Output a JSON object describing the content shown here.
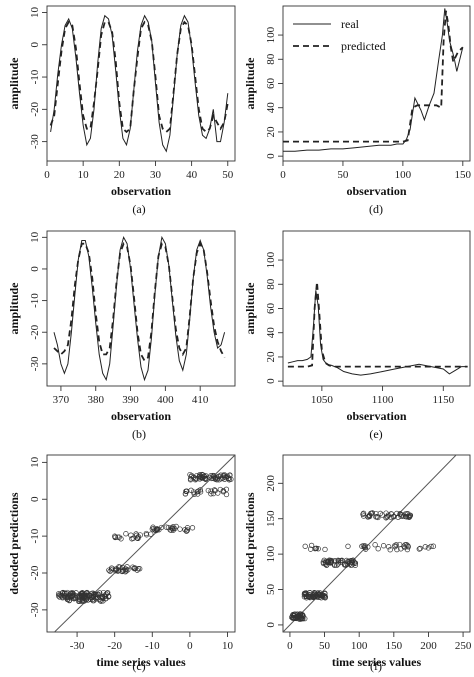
{
  "figure": {
    "legend": {
      "real_label": "real",
      "predicted_label": "predicted"
    }
  },
  "chart_data": [
    {
      "id": "a",
      "type": "line",
      "caption": "(a)",
      "xlabel": "observation",
      "ylabel": "amplitude",
      "xlim": [
        0,
        52
      ],
      "ylim": [
        -36,
        12
      ],
      "xticks": [
        0,
        10,
        20,
        30,
        40,
        50
      ],
      "yticks": [
        -30,
        -20,
        -10,
        0,
        10
      ],
      "series": [
        {
          "name": "real",
          "style": "solid",
          "x": [
            1,
            2,
            3,
            4,
            5,
            6,
            7,
            8,
            9,
            10,
            11,
            12,
            13,
            14,
            15,
            16,
            17,
            18,
            19,
            20,
            21,
            22,
            23,
            24,
            25,
            26,
            27,
            28,
            29,
            30,
            31,
            32,
            33,
            34,
            35,
            36,
            37,
            38,
            39,
            40,
            41,
            42,
            43,
            44,
            45,
            46,
            47,
            48,
            49,
            50
          ],
          "y": [
            -27,
            -20,
            -9,
            0,
            6,
            8,
            5,
            -4,
            -15,
            -25,
            -31,
            -29,
            -20,
            -6,
            5,
            9,
            8,
            3,
            -8,
            -20,
            -29,
            -31,
            -26,
            -14,
            -2,
            6,
            9,
            7,
            1,
            -12,
            -24,
            -31,
            -33,
            -28,
            -16,
            -3,
            6,
            9,
            7,
            -1,
            -12,
            -22,
            -28,
            -29,
            -26,
            -20,
            -30,
            -30,
            -24,
            -15
          ]
        },
        {
          "name": "predicted",
          "style": "dashed",
          "x": [
            1,
            2,
            3,
            4,
            5,
            6,
            7,
            8,
            9,
            10,
            11,
            12,
            13,
            14,
            15,
            16,
            17,
            18,
            19,
            20,
            21,
            22,
            23,
            24,
            25,
            26,
            27,
            28,
            29,
            30,
            31,
            32,
            33,
            34,
            35,
            36,
            37,
            38,
            39,
            40,
            41,
            42,
            43,
            44,
            45,
            46,
            47,
            48,
            49,
            50
          ],
          "y": [
            -25,
            -22,
            -12,
            -2,
            5,
            7,
            6,
            -1,
            -12,
            -22,
            -26,
            -26,
            -18,
            -8,
            3,
            7,
            7,
            4,
            -5,
            -18,
            -26,
            -27,
            -26,
            -14,
            -4,
            5,
            7,
            6,
            1,
            -10,
            -22,
            -26,
            -27,
            -26,
            -15,
            -3,
            5,
            7,
            6,
            0,
            -10,
            -20,
            -26,
            -27,
            -26,
            -22,
            -24,
            -26,
            -24,
            -18
          ]
        }
      ]
    },
    {
      "id": "d",
      "type": "line",
      "caption": "(d)",
      "xlabel": "observation",
      "ylabel": "amplitude",
      "xlim": [
        0,
        156
      ],
      "ylim": [
        -4,
        124
      ],
      "xticks": [
        0,
        50,
        100,
        150
      ],
      "yticks": [
        0,
        20,
        40,
        60,
        80,
        100
      ],
      "legend": "top-left",
      "series": [
        {
          "name": "real",
          "style": "solid",
          "x": [
            0,
            10,
            20,
            30,
            40,
            50,
            60,
            70,
            80,
            90,
            95,
            100,
            103,
            106,
            110,
            115,
            118,
            122,
            126,
            130,
            133,
            135,
            137,
            139,
            141,
            143,
            145,
            147,
            150
          ],
          "y": [
            4,
            4,
            5,
            5,
            6,
            6,
            7,
            8,
            9,
            9,
            10,
            10,
            14,
            22,
            48,
            38,
            30,
            42,
            52,
            80,
            100,
            122,
            110,
            95,
            88,
            80,
            70,
            78,
            90
          ]
        },
        {
          "name": "predicted",
          "style": "dashed",
          "x": [
            0,
            20,
            40,
            60,
            80,
            100,
            104,
            108,
            112,
            118,
            124,
            128,
            132,
            134,
            136,
            138,
            140,
            142,
            144,
            146,
            148,
            150
          ],
          "y": [
            12,
            12,
            12,
            12,
            12,
            12,
            13,
            40,
            42,
            42,
            42,
            42,
            40,
            95,
            120,
            108,
            90,
            78,
            82,
            86,
            88,
            90
          ]
        }
      ]
    },
    {
      "id": "b",
      "type": "line",
      "caption": "(b)",
      "xlabel": "observation",
      "ylabel": "amplitude",
      "xlim": [
        366,
        420
      ],
      "ylim": [
        -37,
        12
      ],
      "xticks": [
        370,
        380,
        390,
        400,
        410
      ],
      "yticks": [
        -30,
        -20,
        -10,
        0,
        10
      ],
      "series": [
        {
          "name": "real",
          "style": "solid",
          "x": [
            368,
            369,
            370,
            371,
            372,
            373,
            374,
            375,
            376,
            377,
            378,
            379,
            380,
            381,
            382,
            383,
            384,
            385,
            386,
            387,
            388,
            389,
            390,
            391,
            392,
            393,
            394,
            395,
            396,
            397,
            398,
            399,
            400,
            401,
            402,
            403,
            404,
            405,
            406,
            407,
            408,
            409,
            410,
            411,
            412,
            413,
            414,
            415,
            416,
            417
          ],
          "y": [
            -20,
            -24,
            -30,
            -33,
            -30,
            -20,
            -8,
            3,
            9,
            9,
            4,
            -6,
            -17,
            -27,
            -33,
            -35,
            -30,
            -18,
            -5,
            6,
            10,
            8,
            0,
            -11,
            -22,
            -31,
            -35,
            -32,
            -22,
            -8,
            4,
            10,
            8,
            1,
            -10,
            -21,
            -29,
            -32,
            -27,
            -16,
            -3,
            6,
            9,
            6,
            -2,
            -12,
            -20,
            -25,
            -24,
            -20
          ]
        },
        {
          "name": "predicted",
          "style": "dashed",
          "x": [
            368,
            369,
            370,
            371,
            372,
            373,
            374,
            375,
            376,
            377,
            378,
            379,
            380,
            381,
            382,
            383,
            384,
            385,
            386,
            387,
            388,
            389,
            390,
            391,
            392,
            393,
            394,
            395,
            396,
            397,
            398,
            399,
            400,
            401,
            402,
            403,
            404,
            405,
            406,
            407,
            408,
            409,
            410,
            411,
            412,
            413,
            414,
            415,
            416,
            417
          ],
          "y": [
            -25,
            -26,
            -27,
            -26,
            -24,
            -16,
            -5,
            3,
            8,
            8,
            5,
            -3,
            -14,
            -23,
            -27,
            -27,
            -25,
            -16,
            -4,
            5,
            8,
            7,
            1,
            -9,
            -20,
            -27,
            -29,
            -28,
            -20,
            -7,
            4,
            8,
            7,
            1,
            -9,
            -19,
            -25,
            -27,
            -25,
            -15,
            -3,
            5,
            8,
            6,
            -1,
            -10,
            -18,
            -23,
            -26,
            -28
          ]
        }
      ]
    },
    {
      "id": "e",
      "type": "line",
      "caption": "(e)",
      "xlabel": "observation",
      "ylabel": "amplitude",
      "xlim": [
        1018,
        1172
      ],
      "ylim": [
        -4,
        124
      ],
      "xticks": [
        1050,
        1100,
        1150
      ],
      "yticks": [
        0,
        20,
        40,
        60,
        80,
        100
      ],
      "series": [
        {
          "name": "real",
          "style": "solid",
          "x": [
            1022,
            1026,
            1030,
            1034,
            1038,
            1041,
            1043,
            1045,
            1047,
            1049,
            1051,
            1054,
            1058,
            1063,
            1068,
            1075,
            1082,
            1090,
            1100,
            1110,
            1120,
            1130,
            1140,
            1150,
            1155,
            1160,
            1165,
            1170
          ],
          "y": [
            15,
            16,
            17,
            17,
            18,
            20,
            45,
            75,
            62,
            30,
            18,
            14,
            13,
            11,
            8,
            6,
            5,
            6,
            8,
            10,
            12,
            14,
            12,
            10,
            6,
            9,
            12,
            12
          ]
        },
        {
          "name": "predicted",
          "style": "dashed",
          "x": [
            1022,
            1030,
            1038,
            1042,
            1044,
            1046,
            1048,
            1050,
            1053,
            1056,
            1060,
            1070,
            1080,
            1100,
            1120,
            1140,
            1160,
            1170
          ],
          "y": [
            12,
            12,
            12,
            13,
            60,
            82,
            55,
            25,
            15,
            13,
            12,
            12,
            12,
            12,
            12,
            12,
            12,
            12
          ]
        }
      ]
    },
    {
      "id": "c",
      "type": "scatter",
      "caption": "(c)",
      "xlabel": "time series values",
      "ylabel": "decoded predictions",
      "xlim": [
        -38,
        12
      ],
      "ylim": [
        -36,
        12
      ],
      "xticks": [
        -30,
        -20,
        -10,
        0,
        10
      ],
      "yticks": [
        -30,
        -20,
        -10,
        0,
        10
      ],
      "reference_line": "y = x",
      "point_groups": [
        {
          "x_from": -35,
          "x_to": -21,
          "y": -26,
          "count": 90
        },
        {
          "x_from": -33,
          "x_to": -22,
          "y": -27,
          "count": 40
        },
        {
          "x_from": -22,
          "x_to": -13,
          "y": -19,
          "count": 30
        },
        {
          "x_from": -20,
          "x_to": -10,
          "y": -10,
          "count": 20
        },
        {
          "x_from": -10,
          "x_to": 2,
          "y": -8,
          "count": 30
        },
        {
          "x_from": 0,
          "x_to": 11,
          "y": 6,
          "count": 60
        },
        {
          "x_from": -2,
          "x_to": 10,
          "y": 2,
          "count": 25
        }
      ]
    },
    {
      "id": "f",
      "type": "scatter",
      "caption": "(f)",
      "xlabel": "time series values",
      "ylabel": "decoded predictions",
      "xlim": [
        -10,
        260
      ],
      "ylim": [
        -10,
        240
      ],
      "xticks": [
        0,
        50,
        100,
        150,
        200,
        250
      ],
      "yticks": [
        0,
        50,
        100,
        150,
        200
      ],
      "reference_line": "y = x",
      "point_groups": [
        {
          "x_from": 2,
          "x_to": 22,
          "y": 12,
          "count": 45
        },
        {
          "x_from": 20,
          "x_to": 52,
          "y": 42,
          "count": 60
        },
        {
          "x_from": 48,
          "x_to": 95,
          "y": 88,
          "count": 55
        },
        {
          "x_from": 105,
          "x_to": 175,
          "y": 155,
          "count": 45
        },
        {
          "x_from": 15,
          "x_to": 210,
          "y": 110,
          "count": 40
        }
      ]
    }
  ]
}
